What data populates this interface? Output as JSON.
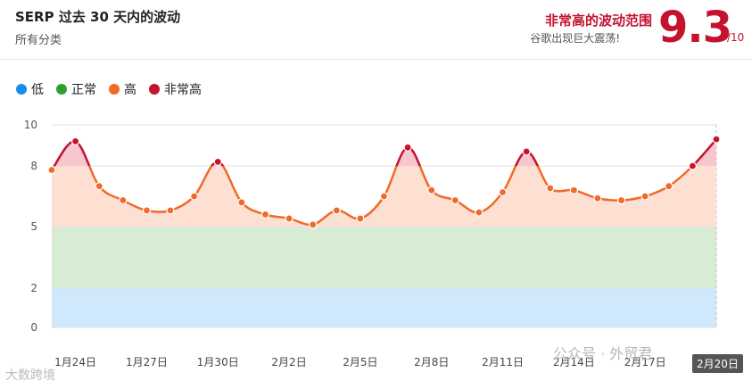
{
  "header": {
    "title": "SERP 过去 30 天内的波动",
    "subtitle": "所有分类",
    "volatility_label": "非常高的波动范围",
    "volatility_sub": "谷歌出现巨大震荡!",
    "score": "9.3",
    "score_max": "/10"
  },
  "legend": [
    {
      "label": "低",
      "color": "#1a8be8"
    },
    {
      "label": "正常",
      "color": "#2ea02e"
    },
    {
      "label": "高",
      "color": "#f06a2a"
    },
    {
      "label": "非常高",
      "color": "#c4122f"
    }
  ],
  "colors": {
    "band_low": "#cfe8fb",
    "band_normal": "#d8ecd3",
    "band_high": "#fde0d2",
    "band_very_high": "#f7c6cf",
    "line_high": "#f06a2a",
    "line_very_high": "#c4122f"
  },
  "chart_data": {
    "type": "line",
    "y_ticks": [
      0,
      2,
      5,
      8,
      10
    ],
    "ylim": [
      0,
      10
    ],
    "bands": [
      {
        "from": 0,
        "to": 2,
        "level": "低"
      },
      {
        "from": 2,
        "to": 5,
        "level": "正常"
      },
      {
        "from": 5,
        "to": 8,
        "level": "高"
      },
      {
        "from": 8,
        "to": 10,
        "level": "非常高"
      }
    ],
    "x_labels": [
      "1月24日",
      "1月27日",
      "1月30日",
      "2月2日",
      "2月5日",
      "2月8日",
      "2月11日",
      "2月14日",
      "2月17日",
      "2月20日"
    ],
    "series": [
      {
        "values": [
          7.8,
          9.2,
          7.0,
          6.3,
          5.8,
          5.8,
          6.5,
          8.2,
          6.2,
          5.6,
          5.4,
          5.1,
          5.8,
          5.4,
          6.5,
          8.9,
          6.8,
          6.3,
          5.7,
          6.7,
          8.7,
          6.9,
          6.8,
          6.4,
          6.3,
          6.5,
          7.0,
          8.0,
          9.3
        ]
      }
    ],
    "tooltip_label": "2月20日"
  },
  "watermarks": {
    "left": "大数跨境",
    "right": "公众号 · 外贸君"
  }
}
